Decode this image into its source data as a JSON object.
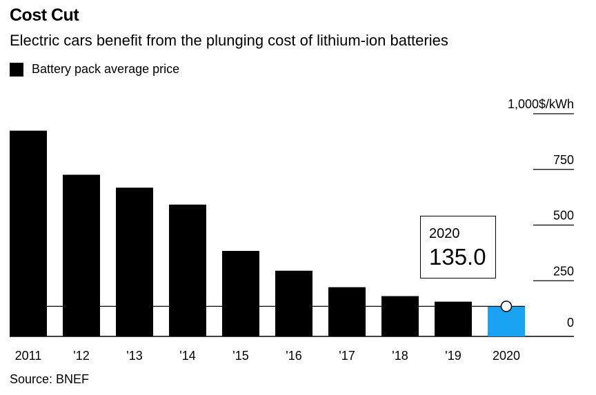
{
  "title": "Cost Cut",
  "subtitle": "Electric cars benefit from the plunging cost of lithium-ion batteries",
  "legend_label": "Battery pack average price",
  "source": "Source: BNEF",
  "callout": {
    "year": "2020",
    "value": "135.0"
  },
  "colors": {
    "bar": "#000000",
    "highlight": "#1aa3f0"
  },
  "chart_data": {
    "type": "bar",
    "categories": [
      "2011",
      "'12",
      "'13",
      "'14",
      "'15",
      "'16",
      "'17",
      "'18",
      "'19",
      "2020"
    ],
    "values": [
      924,
      726,
      668,
      592,
      384,
      295,
      221,
      181,
      156,
      135
    ],
    "highlight_index": 9,
    "reference_line": 135,
    "ylim": [
      0,
      1000
    ],
    "yticks": [
      0,
      250,
      500,
      750,
      1000
    ],
    "ytick_labels": [
      "0",
      "250",
      "500",
      "750",
      "1,000$/kWh"
    ],
    "y_axis_position": "right",
    "grid": false
  }
}
